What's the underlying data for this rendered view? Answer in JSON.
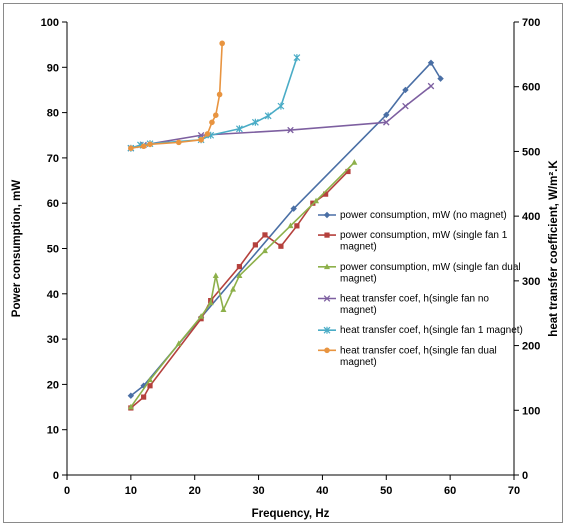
{
  "chart_data": {
    "type": "line",
    "xlabel": "Frequency, Hz",
    "ylabel_left": "Power consumption, mW",
    "ylabel_right": "heat transfer coefficient, W/m².K",
    "xlim": [
      0,
      70
    ],
    "ylim_left": [
      0,
      100
    ],
    "ylim_right": [
      0,
      700
    ],
    "x_ticks": [
      "0",
      "10",
      "20",
      "30",
      "40",
      "50",
      "60",
      "70"
    ],
    "y_left_ticks": [
      "0",
      "10",
      "20",
      "30",
      "40",
      "50",
      "60",
      "70",
      "80",
      "90",
      "100"
    ],
    "y_right_ticks": [
      "0",
      "100",
      "200",
      "300",
      "400",
      "500",
      "600",
      "700"
    ],
    "grid": false,
    "legend_position": "right-center",
    "series": [
      {
        "name": "power consumption, mW (no magnet)",
        "axis": "left",
        "color": "#4a6fa5",
        "marker": "diamond",
        "x": [
          10,
          12,
          21,
          35.5,
          50,
          53,
          57,
          58.5
        ],
        "y": [
          17.5,
          19.7,
          34.8,
          58.8,
          79.5,
          85,
          91,
          87.5
        ]
      },
      {
        "name": "power consumption, mW (single fan 1 magnet)",
        "axis": "left",
        "color": "#b5413d",
        "marker": "square",
        "x": [
          10,
          12,
          13,
          21,
          22.5,
          27,
          29.5,
          31,
          33.5,
          36,
          38.5,
          40.5,
          44
        ],
        "y": [
          14.8,
          17.2,
          19.7,
          34.5,
          38.5,
          46,
          50.8,
          53,
          50.5,
          55,
          60,
          62,
          67
        ]
      },
      {
        "name": "power consumption, mW (single fan dual magnet)",
        "axis": "left",
        "color": "#8db04a",
        "marker": "triangle",
        "x": [
          10,
          13,
          17.5,
          21,
          22.5,
          23.3,
          24.5,
          26,
          27,
          31,
          35,
          39,
          45
        ],
        "y": [
          15,
          21,
          29,
          35,
          38,
          44,
          36.5,
          41,
          44,
          49.5,
          55,
          60.5,
          69
        ]
      },
      {
        "name": "heat transfer coef, h(single fan no magnet)",
        "axis": "right",
        "color": "#7d5fa0",
        "marker": "x",
        "x": [
          10,
          12,
          21,
          35,
          50,
          53,
          57
        ],
        "y": [
          505,
          510,
          525,
          533,
          545,
          570,
          601
        ]
      },
      {
        "name": "heat transfer coef, h(single fan 1 magnet)",
        "axis": "right",
        "color": "#4aacc6",
        "marker": "star",
        "x": [
          10,
          11.5,
          13,
          21,
          22.5,
          27,
          29.5,
          31.5,
          33.5,
          36
        ],
        "y": [
          505,
          510,
          512,
          518,
          525,
          535,
          545,
          555,
          570,
          645
        ]
      },
      {
        "name": "heat transfer coef, h(single fan dual magnet)",
        "axis": "right",
        "color": "#e89440",
        "marker": "circle",
        "x": [
          10,
          12,
          13,
          17.5,
          21,
          22,
          22.7,
          23.3,
          23.9,
          24.3
        ],
        "y": [
          505,
          508,
          511,
          514,
          518,
          527,
          545,
          556,
          588,
          667
        ]
      }
    ]
  }
}
